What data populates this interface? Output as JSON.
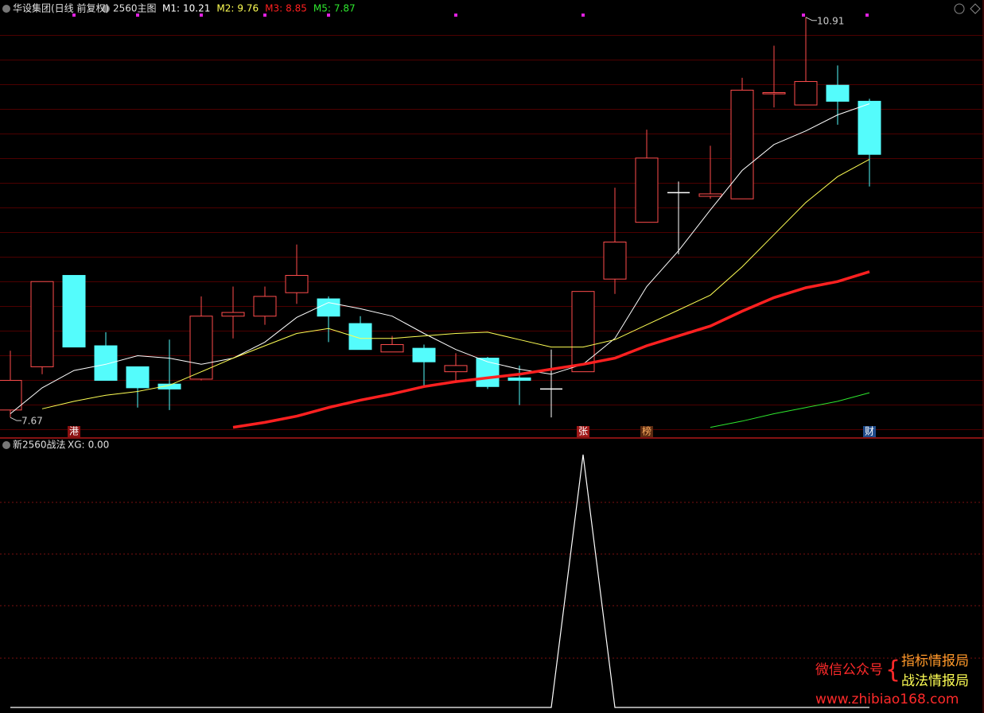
{
  "chart_data": [
    {
      "type": "candlestick",
      "title": "华设集团(日线 前复权)",
      "subtitle": "2560主图",
      "ylim": [
        7.51,
        11.05
      ],
      "open": [
        7.73,
        8.08,
        8.82,
        8.25,
        8.08,
        7.94,
        7.98,
        8.49,
        8.49,
        8.68,
        8.63,
        8.43,
        8.2,
        8.23,
        8.04,
        8.15,
        7.99,
        7.9,
        8.04,
        8.79,
        9.25,
        9.49,
        9.46,
        9.44,
        10.29,
        10.2,
        10.36,
        10.23
      ],
      "high": [
        8.21,
        8.77,
        8.82,
        8.36,
        8.08,
        8.3,
        8.65,
        8.73,
        8.73,
        9.07,
        8.65,
        8.49,
        8.33,
        8.26,
        8.19,
        8.16,
        8.09,
        8.22,
        8.69,
        9.53,
        10.0,
        9.58,
        9.87,
        10.42,
        10.68,
        10.91,
        10.52,
        10.25
      ],
      "low": [
        7.67,
        8.02,
        8.24,
        7.97,
        7.75,
        7.73,
        7.97,
        8.31,
        8.42,
        8.59,
        8.28,
        8.22,
        8.2,
        7.91,
        7.95,
        7.9,
        7.77,
        7.67,
        8.04,
        8.67,
        9.25,
        8.99,
        9.44,
        9.44,
        10.18,
        10.2,
        10.04,
        9.54
      ],
      "close": [
        7.97,
        8.77,
        8.24,
        7.97,
        7.91,
        7.9,
        8.49,
        8.52,
        8.65,
        8.82,
        8.49,
        8.22,
        8.26,
        8.12,
        8.09,
        7.92,
        7.97,
        7.9,
        8.69,
        9.09,
        9.77,
        9.49,
        9.48,
        10.32,
        10.3,
        10.39,
        10.23,
        9.8
      ],
      "up_color": "#ff4d4d",
      "down_color": "#54fcfc",
      "flat_color": "#ffffff",
      "series": [
        {
          "name": "M1:",
          "color": "#ffffff",
          "width": 1,
          "values": [
            7.7,
            7.91,
            8.05,
            8.1,
            8.17,
            8.15,
            8.1,
            8.15,
            8.28,
            8.48,
            8.6,
            8.55,
            8.49,
            8.35,
            8.22,
            8.12,
            8.06,
            8.02,
            8.1,
            8.31,
            8.73,
            9.02,
            9.35,
            9.67,
            9.88,
            9.99,
            10.12,
            10.21
          ]
        },
        {
          "name": "M2:",
          "color": "#ffff54",
          "width": 1,
          "values": [
            null,
            7.74,
            7.8,
            7.85,
            7.88,
            7.93,
            8.04,
            8.15,
            8.25,
            8.35,
            8.39,
            8.31,
            8.31,
            8.33,
            8.35,
            8.36,
            8.3,
            8.24,
            8.24,
            8.3,
            8.42,
            8.54,
            8.66,
            8.89,
            9.15,
            9.41,
            9.62,
            9.76
          ]
        },
        {
          "name": "M3:",
          "color": "#ff2020",
          "width": 3.5,
          "values": [
            null,
            null,
            null,
            null,
            null,
            null,
            null,
            7.59,
            7.63,
            7.68,
            7.75,
            7.81,
            7.86,
            7.92,
            7.96,
            7.99,
            8.02,
            8.06,
            8.1,
            8.15,
            8.25,
            8.33,
            8.41,
            8.53,
            8.64,
            8.72,
            8.77,
            8.85
          ]
        },
        {
          "name": "M5:",
          "color": "#2ee82e",
          "width": 1,
          "values": [
            null,
            null,
            null,
            null,
            null,
            null,
            null,
            null,
            null,
            null,
            null,
            null,
            null,
            null,
            null,
            null,
            null,
            null,
            null,
            null,
            null,
            null,
            7.59,
            7.64,
            7.7,
            7.75,
            7.8,
            7.87
          ]
        }
      ],
      "markers": [
        {
          "index": 2,
          "label": "港",
          "color": "#ffffff",
          "background": "#8b1010"
        },
        {
          "index": 18,
          "label": "张",
          "color": "#ffffff",
          "background": "#a01818"
        },
        {
          "index": 20,
          "label": "榜",
          "color": "#ffb060",
          "background": "#5a2a10"
        },
        {
          "index": 27,
          "label": "财",
          "color": "#ffffff",
          "background": "#1e4a8a"
        }
      ]
    },
    {
      "type": "line",
      "title": "新2560战法",
      "ylim": [
        0,
        1
      ],
      "series": [
        {
          "name": "XG:",
          "last_label": "0.00",
          "color": "#ffffff",
          "values": [
            0,
            0,
            0,
            0,
            0,
            0,
            0,
            0,
            0,
            0,
            0,
            0,
            0,
            0,
            0,
            0,
            0,
            0,
            1,
            0,
            0,
            0,
            0,
            0,
            0,
            0,
            0,
            0
          ]
        }
      ]
    }
  ],
  "watermark": {
    "account": "微信公众号",
    "line1": "指标情报局",
    "line2": "战法情报局",
    "url": "www.zhibiao168.com"
  }
}
